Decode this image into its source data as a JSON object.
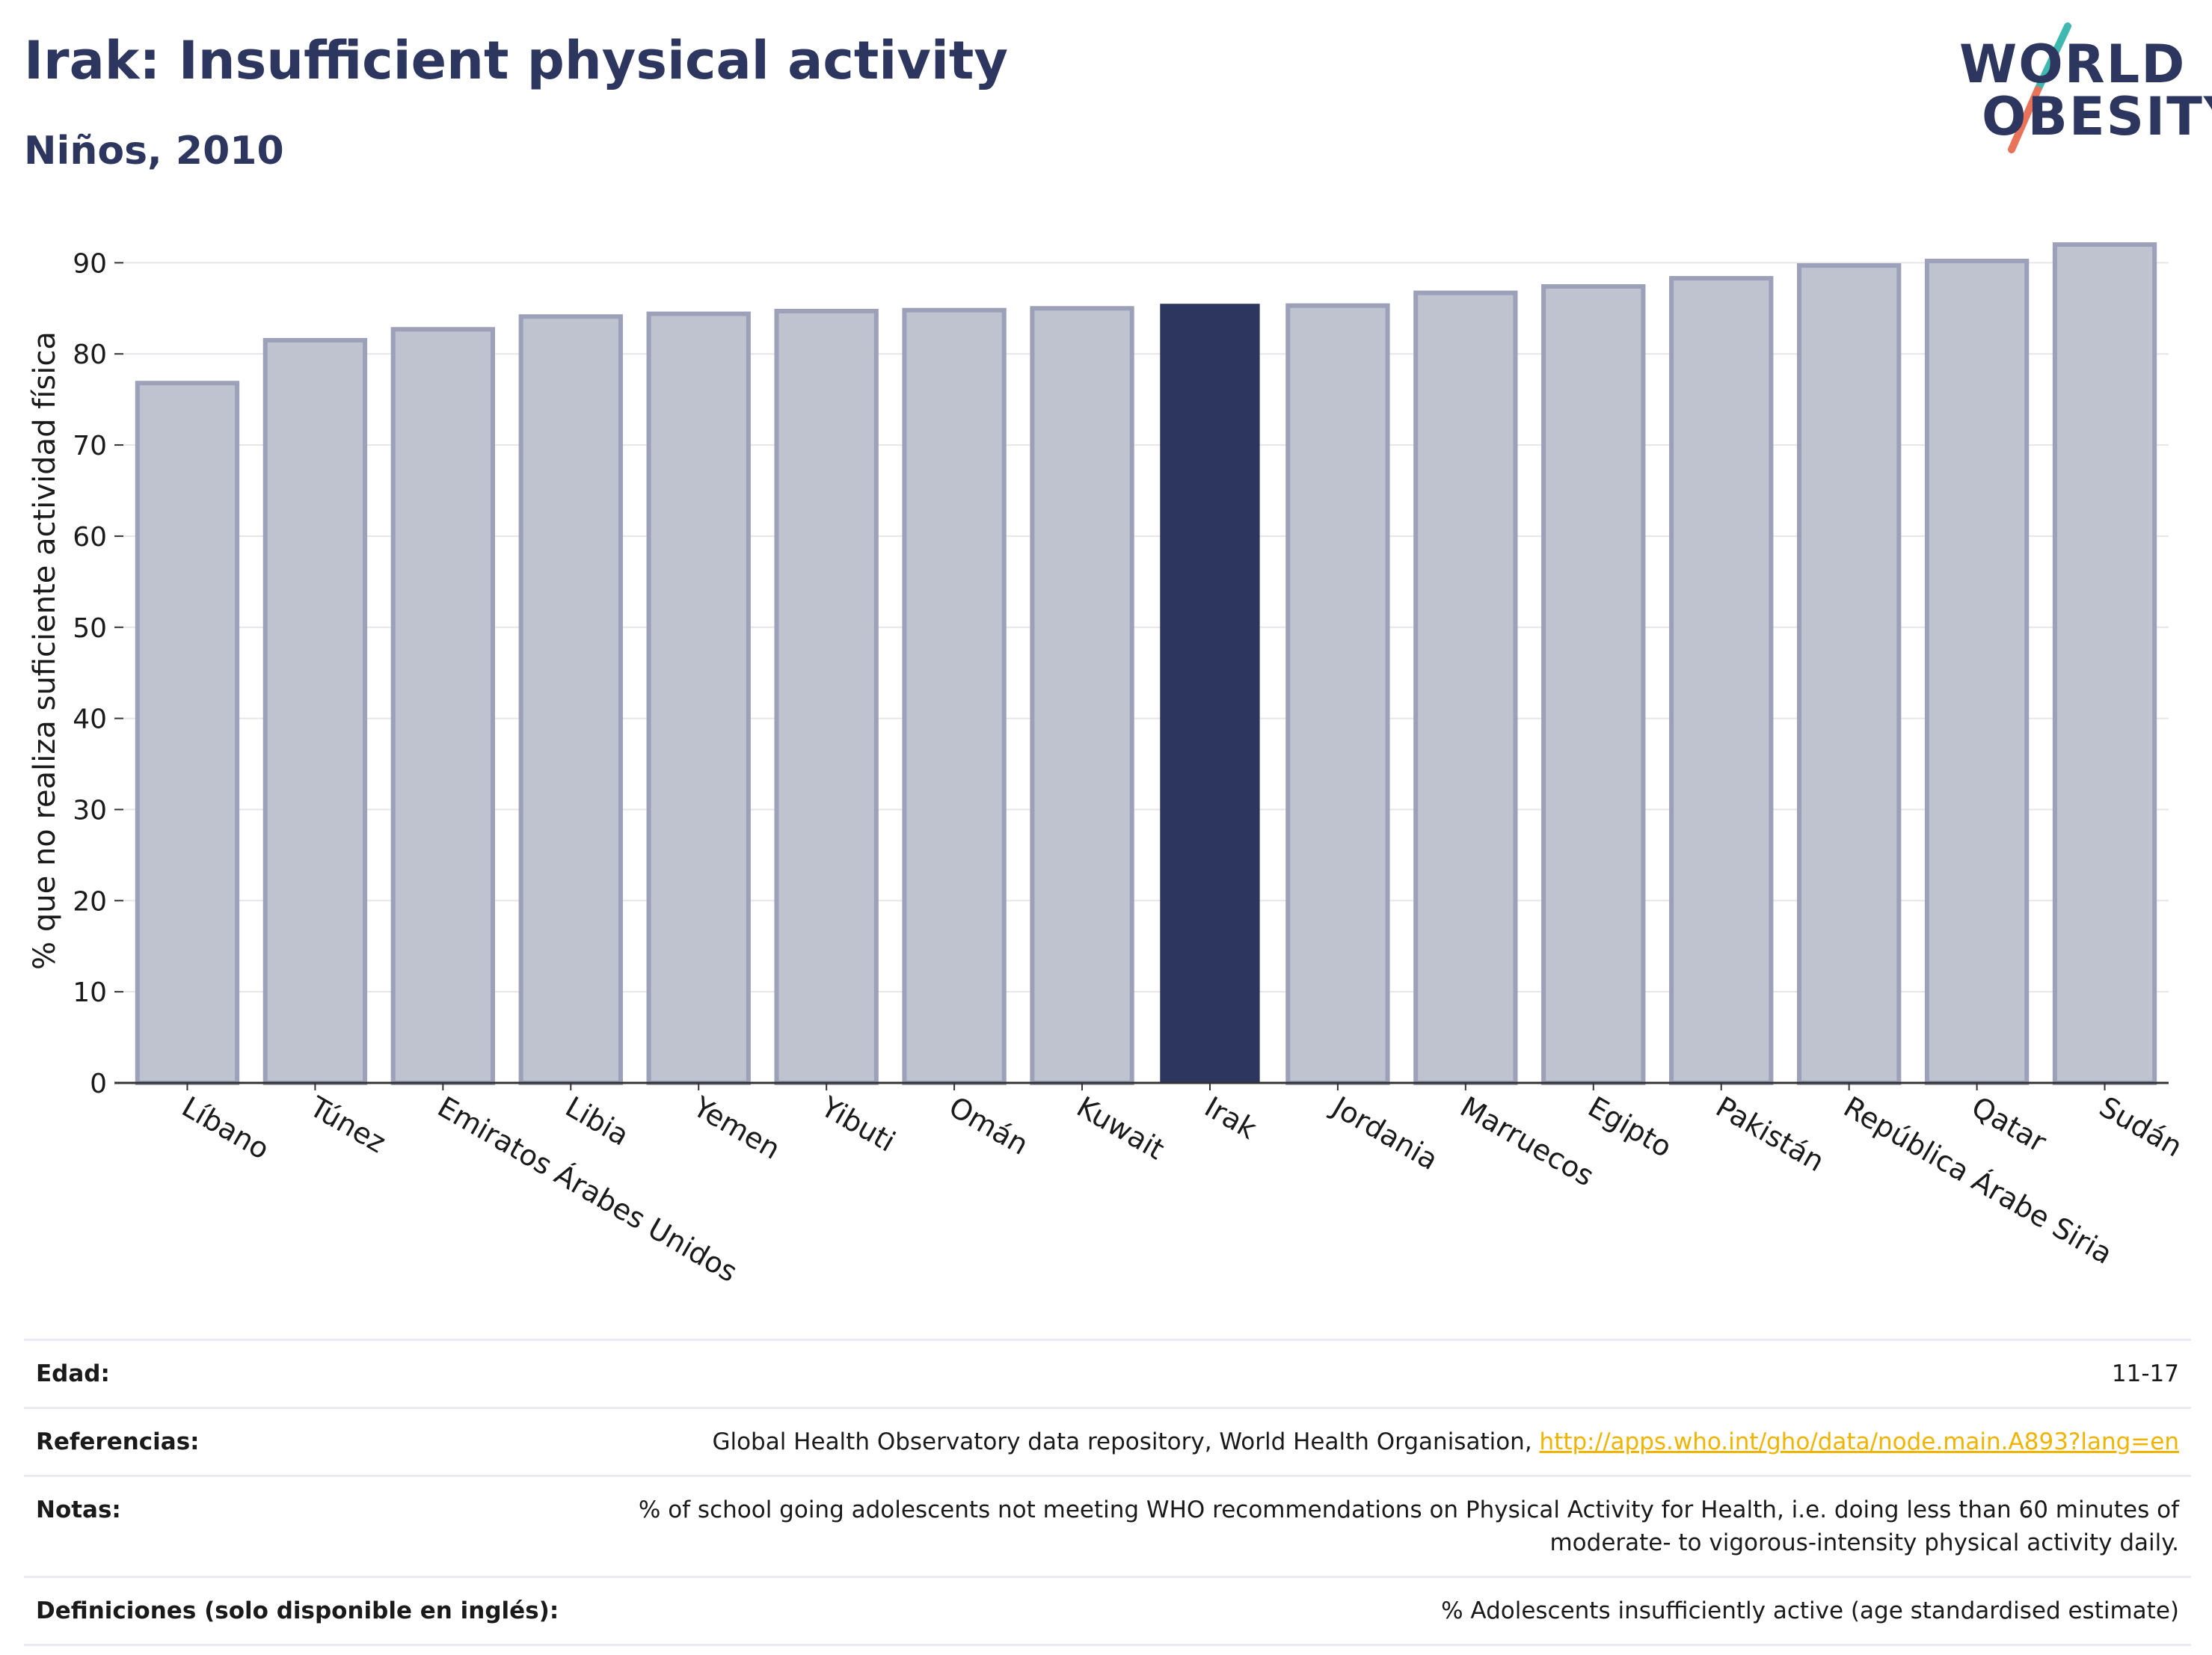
{
  "header": {
    "title": "Irak: Insufficient physical activity",
    "subtitle": "Niños, 2010"
  },
  "logo": {
    "line1": "WORLD",
    "line2": "OBESITY",
    "accent_teal": "#3fb8af",
    "accent_coral": "#e8735a"
  },
  "colors": {
    "highlight_bar": "#2c365e",
    "default_bar": "#bfc2cf",
    "default_bar_border": "#9ca0b8",
    "link": "#f0b400"
  },
  "chart_data": {
    "type": "bar",
    "categories": [
      "Líbano",
      "Túnez",
      "Emiratos Árabes Unidos",
      "Libia",
      "Yemen",
      "Yibuti",
      "Omán",
      "Kuwait",
      "Irak",
      "Jordania",
      "Marruecos",
      "Egipto",
      "Pakistán",
      "República Árabe Siria",
      "Qatar",
      "Sudán"
    ],
    "values": [
      76.8,
      81.5,
      82.7,
      84.1,
      84.4,
      84.7,
      84.8,
      85.0,
      85.5,
      85.3,
      86.7,
      87.4,
      88.3,
      89.7,
      90.2,
      92.0
    ],
    "highlight": "Irak",
    "ylabel": "% que no realiza suficiente actividad física",
    "xlabel": "",
    "ylim": [
      0,
      92
    ],
    "yticks": [
      0,
      10,
      20,
      30,
      40,
      50,
      60,
      70,
      80,
      90
    ],
    "grid": true
  },
  "meta": {
    "age_label": "Edad:",
    "age_value": "11-17",
    "refs_label": "Referencias:",
    "refs_text": "Global Health Observatory data repository, World Health Organisation,",
    "refs_link": "http://apps.who.int/gho/data/node.main.A893?lang=en",
    "notes_label": "Notas:",
    "notes_text": "% of school going adolescents not meeting WHO recommendations on Physical Activity for Health, i.e. doing less than 60 minutes of moderate- to vigorous-intensity physical activity daily.",
    "defs_label": "Definiciones (solo disponible en inglés):",
    "defs_text": "% Adolescents insufficiently active (age standardised estimate)"
  }
}
